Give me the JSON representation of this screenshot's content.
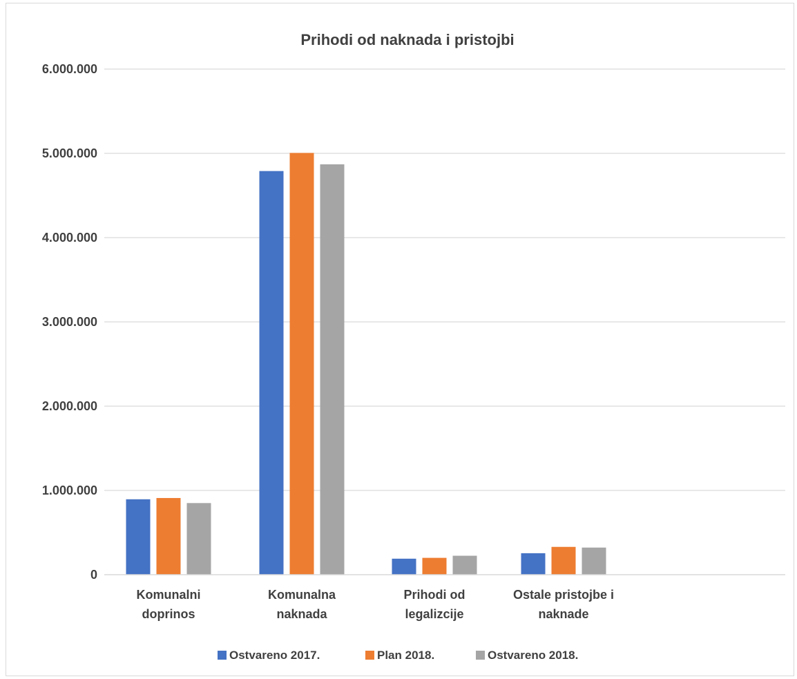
{
  "chart_data": {
    "type": "bar",
    "title": "Prihodi od naknada i pristojbi",
    "xlabel": "",
    "ylabel": "",
    "ylim": [
      0,
      6000000
    ],
    "yticks": [
      0,
      1000000,
      2000000,
      3000000,
      4000000,
      5000000,
      6000000
    ],
    "ytick_labels": [
      "0",
      "1.000.000",
      "2.000.000",
      "3.000.000",
      "4.000.000",
      "5.000.000",
      "6.000.000"
    ],
    "grid": true,
    "legend_position": "bottom",
    "categories": [
      [
        "Komunalni",
        "doprinos"
      ],
      [
        "Komunalna",
        "naknada"
      ],
      [
        "Prihodi od",
        "legalizcije"
      ],
      [
        "Ostale pristojbe i",
        "naknade"
      ]
    ],
    "series": [
      {
        "name": "Ostvareno 2017.",
        "color": "#4472c4",
        "values": [
          895000,
          4790000,
          190000,
          255000
        ]
      },
      {
        "name": "Plan 2018.",
        "color": "#ed7d31",
        "values": [
          910000,
          5005000,
          200000,
          330000
        ]
      },
      {
        "name": "Ostvareno 2018.",
        "color": "#a5a5a5",
        "values": [
          850000,
          4870000,
          225000,
          322000
        ]
      }
    ]
  }
}
